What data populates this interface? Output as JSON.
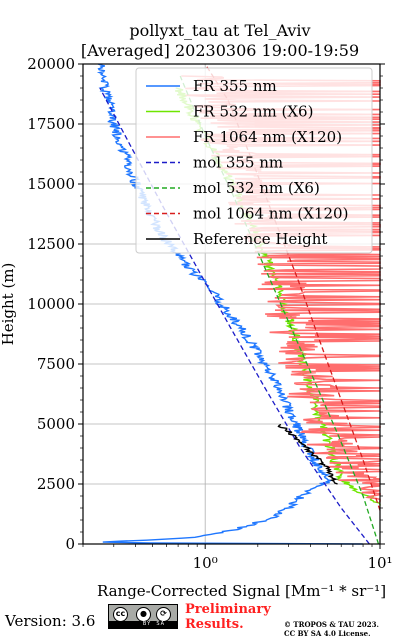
{
  "title": {
    "line1": "pollyxt_tau at Tel_Aviv",
    "line2": "[Averaged] 20230306 19:00-19:59"
  },
  "chart_data": {
    "type": "line",
    "xlabel": "Range-Corrected Signal [Mm⁻¹ * sr⁻¹]",
    "ylabel": "Height (m)",
    "xscale": "log",
    "xlim": [
      0.2,
      10
    ],
    "ylim": [
      0,
      20000
    ],
    "grid": true,
    "legend_position": "top-right",
    "xticks": [
      {
        "value": 1,
        "label": "10⁰"
      },
      {
        "value": 10,
        "label": "10¹"
      }
    ],
    "yticks": [
      0,
      2500,
      5000,
      7500,
      10000,
      12500,
      15000,
      17500,
      20000
    ],
    "series": [
      {
        "name": "FR 355 nm",
        "color": "#1f77ff",
        "style": "solid",
        "noisy": true,
        "x": [
          8.5,
          0.22,
          0.8,
          1.5,
          2.4,
          3.1,
          3.7,
          5.0,
          4.2,
          3.3,
          2.6,
          2.2,
          1.8,
          1.4,
          1.1,
          0.8,
          0.55,
          0.4,
          0.3,
          0.25
        ],
        "y": [
          0,
          50,
          250,
          600,
          1100,
          1600,
          2100,
          2600,
          3500,
          5000,
          6500,
          7500,
          8500,
          9500,
          10500,
          11500,
          13000,
          15000,
          17500,
          20000
        ]
      },
      {
        "name": "FR 532 nm (X6)",
        "color": "#6ee600",
        "style": "solid",
        "noisy": true,
        "x": [
          10,
          9.5,
          8,
          6,
          5.2,
          4.6,
          4.0,
          3.5,
          3.0,
          2.5,
          2.1,
          1.7,
          1.3,
          1.0,
          0.7
        ],
        "y": [
          1600,
          1800,
          2100,
          2700,
          4000,
          5000,
          6500,
          8000,
          9500,
          11000,
          12500,
          14000,
          15500,
          17000,
          19000
        ]
      },
      {
        "name": "FR 1064 nm (X120)",
        "color": "#ff6e6e",
        "style": "solid",
        "noisy": true,
        "x": [
          10,
          8,
          6,
          5,
          4.2,
          3.5,
          3.0,
          2.4,
          1.8,
          1.3,
          1.0
        ],
        "y": [
          1700,
          2500,
          3500,
          4500,
          6000,
          8000,
          10000,
          12000,
          14500,
          17000,
          19500
        ]
      },
      {
        "name": "mol 355 nm",
        "color": "#1c1cc8",
        "style": "dashed",
        "noisy": false,
        "x": [
          8.7,
          6.0,
          3.5,
          2.2,
          1.4,
          0.9,
          0.58,
          0.38,
          0.25
        ],
        "y": [
          0,
          1500,
          4000,
          6500,
          9000,
          11500,
          14000,
          16500,
          19000
        ]
      },
      {
        "name": "mol 532 nm (X6)",
        "color": "#22aa22",
        "style": "dashed",
        "noisy": false,
        "x": [
          9.8,
          8.0,
          5.8,
          4.1,
          2.9,
          2.05,
          1.45,
          1.0,
          0.72
        ],
        "y": [
          0,
          2000,
          4500,
          7000,
          9500,
          12000,
          14500,
          17000,
          19500
        ]
      },
      {
        "name": "mol 1064 nm (X120)",
        "color": "#d81e1e",
        "style": "dashed",
        "noisy": false,
        "x": [
          10,
          8.0,
          6.0,
          4.5,
          3.4,
          2.5,
          1.85,
          1.35,
          1.0
        ],
        "y": [
          1400,
          3500,
          6000,
          8500,
          11000,
          13500,
          16000,
          18500,
          20000
        ]
      },
      {
        "name": "Reference Height",
        "color": "#000000",
        "style": "solid",
        "noisy": true,
        "x": [
          2.6,
          3.0,
          3.4,
          3.9,
          4.4,
          4.9,
          5.6
        ],
        "y": [
          5000,
          4700,
          4300,
          3900,
          3600,
          3200,
          2500
        ]
      }
    ]
  },
  "footer": {
    "version": "Version: 3.6",
    "license_badge": {
      "by": "BY",
      "sa": "SA"
    },
    "preliminary_line1": "Preliminary",
    "preliminary_line2": "Results.",
    "copyright_line1": "© TROPOS & TAU 2023.",
    "copyright_line2": "CC BY SA 4.0 License."
  }
}
